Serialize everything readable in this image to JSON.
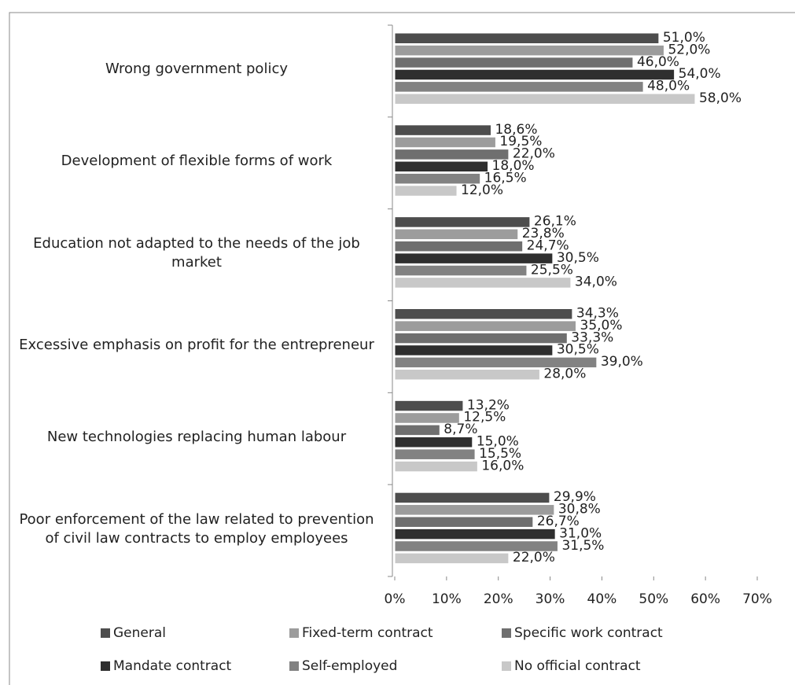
{
  "chart_data": {
    "type": "barh",
    "categories": [
      "Wrong government policy",
      "Development of flexible forms of work",
      "Education not adapted to the needs of the job market",
      "Excessive emphasis on profit for the entrepreneur",
      "New technologies replacing human labour",
      "Poor enforcement of the law related to prevention of civil law contracts to employ employees"
    ],
    "series": [
      {
        "name": "General",
        "color": "#4d4d4d",
        "values": [
          51.0,
          18.6,
          26.1,
          34.3,
          13.2,
          29.9
        ],
        "value_labels": [
          "51,0%",
          "18,6%",
          "26,1%",
          "34,3%",
          "13,2%",
          "29,9%"
        ]
      },
      {
        "name": "Fixed-term contract",
        "color": "#9c9c9c",
        "values": [
          52.0,
          19.5,
          23.8,
          35.0,
          12.5,
          30.8
        ],
        "value_labels": [
          "52,0%",
          "19,5%",
          "23,8%",
          "35,0%",
          "12,5%",
          "30,8%"
        ]
      },
      {
        "name": "Specific work contract",
        "color": "#6f6f6f",
        "values": [
          46.0,
          22.0,
          24.7,
          33.3,
          8.7,
          26.7
        ],
        "value_labels": [
          "46,0%",
          "22,0%",
          "24,7%",
          "33,3%",
          "8,7%",
          "26,7%"
        ]
      },
      {
        "name": "Mandate contract",
        "color": "#2f2f2f",
        "values": [
          54.0,
          18.0,
          30.5,
          30.5,
          15.0,
          31.0
        ],
        "value_labels": [
          "54,0%",
          "18,0%",
          "30,5%",
          "30,5%",
          "15,0%",
          "31,0%"
        ]
      },
      {
        "name": "Self-employed",
        "color": "#828282",
        "values": [
          48.0,
          16.5,
          25.5,
          39.0,
          15.5,
          31.5
        ],
        "value_labels": [
          "48,0%",
          "16,5%",
          "25,5%",
          "39,0%",
          "15,5%",
          "31,5%"
        ]
      },
      {
        "name": "No official contract",
        "color": "#c8c8c8",
        "values": [
          58.0,
          12.0,
          34.0,
          28.0,
          16.0,
          22.0
        ],
        "value_labels": [
          "58,0%",
          "12,0%",
          "34,0%",
          "28,0%",
          "16,0%",
          "22,0%"
        ]
      }
    ],
    "xlim": [
      0,
      70
    ],
    "xticks": [
      {
        "value": 0,
        "label": "0%"
      },
      {
        "value": 10,
        "label": "10%"
      },
      {
        "value": 20,
        "label": "20%"
      },
      {
        "value": 30,
        "label": "30%"
      },
      {
        "value": 40,
        "label": "40%"
      },
      {
        "value": 50,
        "label": "50%"
      },
      {
        "value": 60,
        "label": "60%"
      },
      {
        "value": 70,
        "label": "70%"
      }
    ],
    "legend": "bottom"
  }
}
